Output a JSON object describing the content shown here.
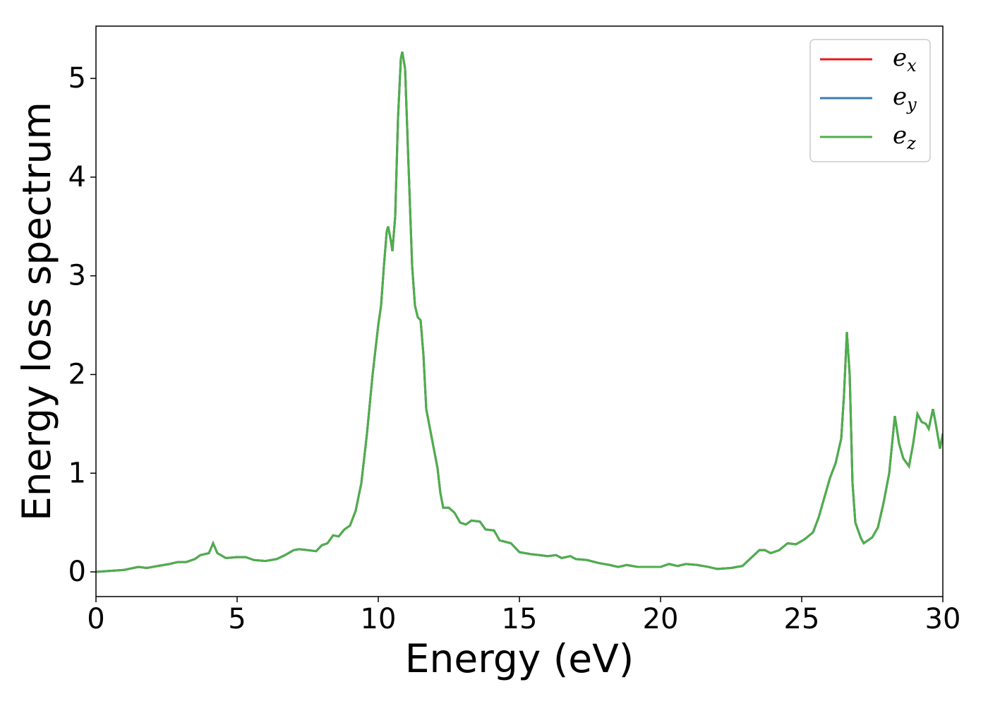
{
  "chart_data": {
    "type": "line",
    "xlabel": "Energy (eV)",
    "ylabel": "Energy loss spectrum",
    "x": [
      0,
      0.5,
      1,
      1.5,
      1.8,
      2.2,
      2.6,
      2.9,
      3.2,
      3.5,
      3.7,
      4.0,
      4.15,
      4.3,
      4.6,
      5.0,
      5.3,
      5.6,
      6.0,
      6.4,
      6.7,
      7.0,
      7.2,
      7.5,
      7.8,
      8.0,
      8.2,
      8.4,
      8.6,
      8.8,
      9.0,
      9.2,
      9.4,
      9.6,
      9.8,
      10.0,
      10.1,
      10.2,
      10.3,
      10.35,
      10.45,
      10.5,
      10.6,
      10.7,
      10.8,
      10.85,
      10.95,
      11.05,
      11.2,
      11.3,
      11.4,
      11.5,
      11.6,
      11.7,
      11.9,
      12.1,
      12.2,
      12.3,
      12.5,
      12.7,
      12.9,
      13.1,
      13.3,
      13.6,
      13.8,
      14.1,
      14.3,
      14.7,
      15.0,
      15.4,
      15.7,
      16.0,
      16.3,
      16.5,
      16.8,
      17.0,
      17.4,
      17.8,
      18.2,
      18.5,
      18.8,
      19.2,
      19.6,
      20.0,
      20.3,
      20.6,
      20.9,
      21.3,
      21.7,
      22.0,
      22.5,
      22.9,
      23.2,
      23.5,
      23.7,
      23.9,
      24.2,
      24.5,
      24.8,
      25.1,
      25.4,
      25.6,
      25.8,
      26.0,
      26.2,
      26.4,
      26.5,
      26.6,
      26.7,
      26.8,
      26.9,
      27.1,
      27.2,
      27.5,
      27.7,
      27.9,
      28.1,
      28.3,
      28.45,
      28.6,
      28.8,
      28.95,
      29.1,
      29.25,
      29.4,
      29.5,
      29.65,
      29.75,
      29.9,
      30.0
    ],
    "series": [
      {
        "name": "e_x",
        "color": "#e41a1c",
        "values": [
          0.0,
          0.01,
          0.02,
          0.05,
          0.04,
          0.06,
          0.08,
          0.1,
          0.1,
          0.13,
          0.17,
          0.19,
          0.29,
          0.19,
          0.14,
          0.15,
          0.15,
          0.12,
          0.11,
          0.13,
          0.17,
          0.22,
          0.23,
          0.22,
          0.21,
          0.27,
          0.29,
          0.37,
          0.36,
          0.43,
          0.47,
          0.62,
          0.9,
          1.4,
          2.0,
          2.5,
          2.7,
          3.1,
          3.45,
          3.5,
          3.35,
          3.25,
          3.6,
          4.6,
          5.2,
          5.27,
          5.1,
          4.3,
          3.1,
          2.7,
          2.58,
          2.55,
          2.2,
          1.65,
          1.35,
          1.05,
          0.8,
          0.65,
          0.65,
          0.6,
          0.5,
          0.48,
          0.52,
          0.51,
          0.43,
          0.42,
          0.32,
          0.29,
          0.2,
          0.18,
          0.17,
          0.16,
          0.17,
          0.14,
          0.16,
          0.13,
          0.12,
          0.09,
          0.07,
          0.05,
          0.07,
          0.05,
          0.05,
          0.05,
          0.08,
          0.06,
          0.08,
          0.07,
          0.05,
          0.03,
          0.04,
          0.06,
          0.14,
          0.22,
          0.22,
          0.19,
          0.22,
          0.29,
          0.28,
          0.33,
          0.4,
          0.55,
          0.75,
          0.95,
          1.1,
          1.35,
          1.8,
          2.43,
          2.0,
          0.9,
          0.5,
          0.34,
          0.29,
          0.35,
          0.45,
          0.7,
          1.0,
          1.58,
          1.3,
          1.15,
          1.07,
          1.3,
          1.6,
          1.52,
          1.5,
          1.45,
          1.65,
          1.5,
          1.25,
          1.4
        ]
      },
      {
        "name": "e_y",
        "color": "#377eb8",
        "values": [
          0.0,
          0.01,
          0.02,
          0.05,
          0.04,
          0.06,
          0.08,
          0.1,
          0.1,
          0.13,
          0.17,
          0.19,
          0.29,
          0.19,
          0.14,
          0.15,
          0.15,
          0.12,
          0.11,
          0.13,
          0.17,
          0.22,
          0.23,
          0.22,
          0.21,
          0.27,
          0.29,
          0.37,
          0.36,
          0.43,
          0.47,
          0.62,
          0.9,
          1.4,
          2.0,
          2.5,
          2.7,
          3.1,
          3.45,
          3.5,
          3.35,
          3.25,
          3.6,
          4.6,
          5.2,
          5.27,
          5.1,
          4.3,
          3.1,
          2.7,
          2.58,
          2.55,
          2.2,
          1.65,
          1.35,
          1.05,
          0.8,
          0.65,
          0.65,
          0.6,
          0.5,
          0.48,
          0.52,
          0.51,
          0.43,
          0.42,
          0.32,
          0.29,
          0.2,
          0.18,
          0.17,
          0.16,
          0.17,
          0.14,
          0.16,
          0.13,
          0.12,
          0.09,
          0.07,
          0.05,
          0.07,
          0.05,
          0.05,
          0.05,
          0.08,
          0.06,
          0.08,
          0.07,
          0.05,
          0.03,
          0.04,
          0.06,
          0.14,
          0.22,
          0.22,
          0.19,
          0.22,
          0.29,
          0.28,
          0.33,
          0.4,
          0.55,
          0.75,
          0.95,
          1.1,
          1.35,
          1.8,
          2.43,
          2.0,
          0.9,
          0.5,
          0.34,
          0.29,
          0.35,
          0.45,
          0.7,
          1.0,
          1.58,
          1.3,
          1.15,
          1.07,
          1.3,
          1.6,
          1.52,
          1.5,
          1.45,
          1.65,
          1.5,
          1.25,
          1.4
        ]
      },
      {
        "name": "e_z",
        "color": "#4daf4a",
        "values": [
          0.0,
          0.01,
          0.02,
          0.05,
          0.04,
          0.06,
          0.08,
          0.1,
          0.1,
          0.13,
          0.17,
          0.19,
          0.29,
          0.19,
          0.14,
          0.15,
          0.15,
          0.12,
          0.11,
          0.13,
          0.17,
          0.22,
          0.23,
          0.22,
          0.21,
          0.27,
          0.29,
          0.37,
          0.36,
          0.43,
          0.47,
          0.62,
          0.9,
          1.4,
          2.0,
          2.5,
          2.7,
          3.1,
          3.45,
          3.5,
          3.35,
          3.25,
          3.6,
          4.6,
          5.2,
          5.27,
          5.1,
          4.3,
          3.1,
          2.7,
          2.58,
          2.55,
          2.2,
          1.65,
          1.35,
          1.05,
          0.8,
          0.65,
          0.65,
          0.6,
          0.5,
          0.48,
          0.52,
          0.51,
          0.43,
          0.42,
          0.32,
          0.29,
          0.2,
          0.18,
          0.17,
          0.16,
          0.17,
          0.14,
          0.16,
          0.13,
          0.12,
          0.09,
          0.07,
          0.05,
          0.07,
          0.05,
          0.05,
          0.05,
          0.08,
          0.06,
          0.08,
          0.07,
          0.05,
          0.03,
          0.04,
          0.06,
          0.14,
          0.22,
          0.22,
          0.19,
          0.22,
          0.29,
          0.28,
          0.33,
          0.4,
          0.55,
          0.75,
          0.95,
          1.1,
          1.35,
          1.8,
          2.43,
          2.0,
          0.9,
          0.5,
          0.34,
          0.29,
          0.35,
          0.45,
          0.7,
          1.0,
          1.58,
          1.3,
          1.15,
          1.07,
          1.3,
          1.6,
          1.52,
          1.5,
          1.45,
          1.65,
          1.5,
          1.25,
          1.4
        ]
      }
    ],
    "xlim": [
      0,
      30
    ],
    "xticks": [
      0,
      5,
      10,
      15,
      20,
      25,
      30
    ],
    "ylim": [
      -0.25,
      5.53
    ],
    "yticks": [
      0,
      1,
      2,
      3,
      4,
      5
    ],
    "legend": "upper right"
  }
}
